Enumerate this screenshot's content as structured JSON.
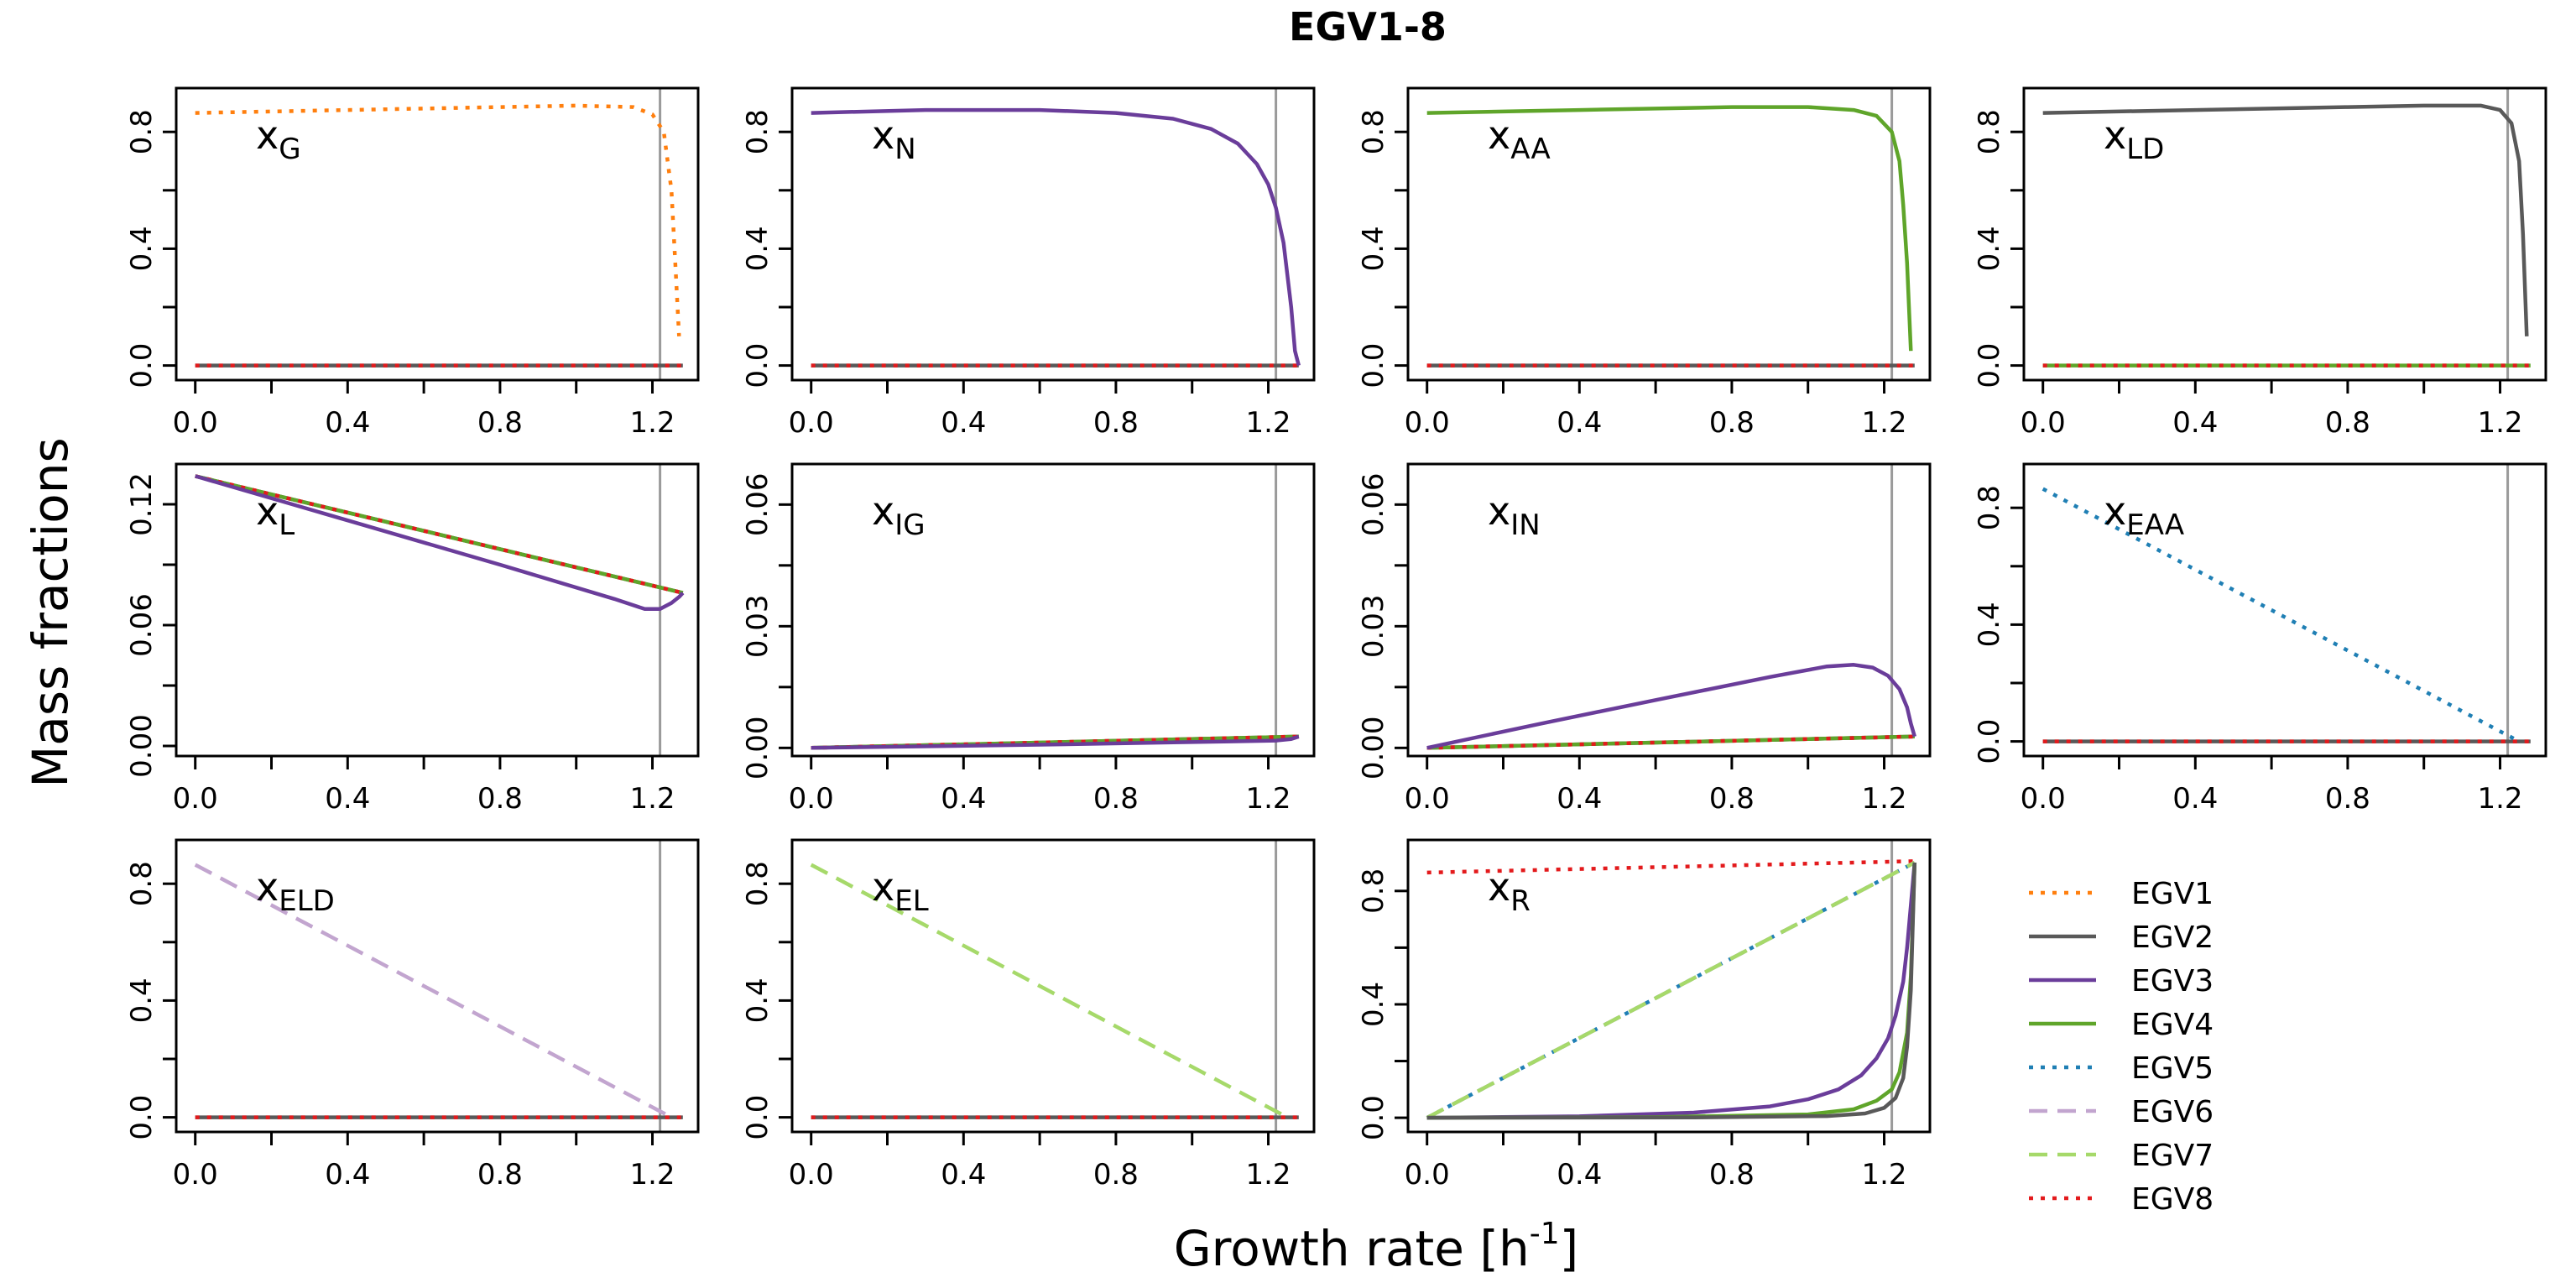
{
  "figure": {
    "title": "EGV1-8",
    "xlabel": "Growth rate [h",
    "xlabel_sup": "-1",
    "xlabel_end": "]",
    "ylabel": "Mass fractions"
  },
  "colors": {
    "EGV1": "#ff7f0e",
    "EGV2": "#595959",
    "EGV3": "#6a3d9a",
    "EGV4": "#5fa52a",
    "EGV5": "#1f7fb4",
    "EGV6": "#c2a5cf",
    "EGV7": "#a6d96a",
    "EGV8": "#e31a1c"
  },
  "legend": [
    {
      "name": "EGV1",
      "style": "dotted"
    },
    {
      "name": "EGV2",
      "style": "solid"
    },
    {
      "name": "EGV3",
      "style": "solid"
    },
    {
      "name": "EGV4",
      "style": "solid"
    },
    {
      "name": "EGV5",
      "style": "dotted"
    },
    {
      "name": "EGV6",
      "style": "dashed"
    },
    {
      "name": "EGV7",
      "style": "dashed"
    },
    {
      "name": "EGV8",
      "style": "dotted"
    }
  ],
  "chart_data": [
    {
      "type": "line",
      "panel_label": "x",
      "panel_label_sub": "G",
      "xlim": [
        -0.05,
        1.32
      ],
      "ylim": [
        -0.05,
        0.95
      ],
      "xticks": [
        0,
        0.2,
        0.4,
        0.6,
        0.8,
        1.0,
        1.2
      ],
      "xticklabels": [
        "0.0",
        "",
        "0.4",
        "",
        "0.8",
        "",
        "1.2"
      ],
      "yticks": [
        0,
        0.2,
        0.4,
        0.6,
        0.8
      ],
      "yticklabels": [
        "0.0",
        "",
        "0.4",
        "",
        "0.8"
      ],
      "vline": 1.22,
      "series": [
        {
          "name": "EGV2",
          "x": [
            0,
            1.28
          ],
          "y": [
            0,
            0
          ]
        },
        {
          "name": "EGV8",
          "x": [
            0,
            1.28
          ],
          "y": [
            0,
            0
          ]
        },
        {
          "name": "EGV1",
          "x": [
            0,
            0.4,
            0.8,
            1.0,
            1.15,
            1.2,
            1.23,
            1.25,
            1.26,
            1.27
          ],
          "y": [
            0.865,
            0.875,
            0.885,
            0.89,
            0.885,
            0.86,
            0.8,
            0.6,
            0.35,
            0.1
          ]
        }
      ]
    },
    {
      "type": "line",
      "panel_label": "x",
      "panel_label_sub": "N",
      "xlim": [
        -0.05,
        1.32
      ],
      "ylim": [
        -0.05,
        0.95
      ],
      "xticks": [
        0,
        0.2,
        0.4,
        0.6,
        0.8,
        1.0,
        1.2
      ],
      "xticklabels": [
        "0.0",
        "",
        "0.4",
        "",
        "0.8",
        "",
        "1.2"
      ],
      "yticks": [
        0,
        0.2,
        0.4,
        0.6,
        0.8
      ],
      "yticklabels": [
        "0.0",
        "",
        "0.4",
        "",
        "0.8"
      ],
      "vline": 1.22,
      "series": [
        {
          "name": "EGV2",
          "x": [
            0,
            1.28
          ],
          "y": [
            0,
            0
          ]
        },
        {
          "name": "EGV8",
          "x": [
            0,
            1.28
          ],
          "y": [
            0,
            0
          ]
        },
        {
          "name": "EGV3",
          "x": [
            0,
            0.3,
            0.6,
            0.8,
            0.95,
            1.05,
            1.12,
            1.17,
            1.2,
            1.22,
            1.24,
            1.26,
            1.27,
            1.28
          ],
          "y": [
            0.865,
            0.875,
            0.875,
            0.865,
            0.845,
            0.81,
            0.76,
            0.69,
            0.62,
            0.54,
            0.42,
            0.2,
            0.05,
            0.0
          ]
        }
      ]
    },
    {
      "type": "line",
      "panel_label": "x",
      "panel_label_sub": "AA",
      "xlim": [
        -0.05,
        1.32
      ],
      "ylim": [
        -0.05,
        0.95
      ],
      "xticks": [
        0,
        0.2,
        0.4,
        0.6,
        0.8,
        1.0,
        1.2
      ],
      "xticklabels": [
        "0.0",
        "",
        "0.4",
        "",
        "0.8",
        "",
        "1.2"
      ],
      "yticks": [
        0,
        0.2,
        0.4,
        0.6,
        0.8
      ],
      "yticklabels": [
        "0.0",
        "",
        "0.4",
        "",
        "0.8"
      ],
      "vline": 1.22,
      "series": [
        {
          "name": "EGV2",
          "x": [
            0,
            1.28
          ],
          "y": [
            0,
            0
          ]
        },
        {
          "name": "EGV8",
          "x": [
            0,
            1.28
          ],
          "y": [
            0,
            0
          ]
        },
        {
          "name": "EGV4",
          "x": [
            0,
            0.4,
            0.8,
            1.0,
            1.12,
            1.18,
            1.22,
            1.24,
            1.25,
            1.26,
            1.27
          ],
          "y": [
            0.865,
            0.875,
            0.885,
            0.885,
            0.875,
            0.855,
            0.8,
            0.7,
            0.55,
            0.35,
            0.05
          ]
        }
      ]
    },
    {
      "type": "line",
      "panel_label": "x",
      "panel_label_sub": "LD",
      "xlim": [
        -0.05,
        1.32
      ],
      "ylim": [
        -0.05,
        0.95
      ],
      "xticks": [
        0,
        0.2,
        0.4,
        0.6,
        0.8,
        1.0,
        1.2
      ],
      "xticklabels": [
        "0.0",
        "",
        "0.4",
        "",
        "0.8",
        "",
        "1.2"
      ],
      "yticks": [
        0,
        0.2,
        0.4,
        0.6,
        0.8
      ],
      "yticklabels": [
        "0.0",
        "",
        "0.4",
        "",
        "0.8"
      ],
      "vline": 1.22,
      "series": [
        {
          "name": "EGV4",
          "x": [
            0,
            1.28
          ],
          "y": [
            0,
            0
          ]
        },
        {
          "name": "EGV8",
          "x": [
            0,
            1.28
          ],
          "y": [
            0,
            0
          ]
        },
        {
          "name": "EGV2",
          "x": [
            0,
            0.4,
            0.8,
            1.0,
            1.15,
            1.2,
            1.23,
            1.25,
            1.26,
            1.27
          ],
          "y": [
            0.865,
            0.875,
            0.885,
            0.89,
            0.89,
            0.875,
            0.83,
            0.7,
            0.45,
            0.1
          ]
        }
      ]
    },
    {
      "type": "line",
      "panel_label": "x",
      "panel_label_sub": "L",
      "xlim": [
        -0.05,
        1.32
      ],
      "ylim": [
        -0.005,
        0.14
      ],
      "xticks": [
        0,
        0.2,
        0.4,
        0.6,
        0.8,
        1.0,
        1.2
      ],
      "xticklabels": [
        "0.0",
        "",
        "0.4",
        "",
        "0.8",
        "",
        "1.2"
      ],
      "yticks": [
        0,
        0.03,
        0.06,
        0.09,
        0.12
      ],
      "yticklabels": [
        "0.00",
        "",
        "0.06",
        "",
        "0.12"
      ],
      "vline": 1.22,
      "series": [
        {
          "name": "EGV2",
          "x": [
            0,
            1.28
          ],
          "y": [
            0.134,
            0.076
          ]
        },
        {
          "name": "EGV4",
          "x": [
            0,
            1.28
          ],
          "y": [
            0.134,
            0.076
          ]
        },
        {
          "name": "EGV8",
          "x": [
            0,
            1.28
          ],
          "y": [
            0.134,
            0.076
          ]
        },
        {
          "name": "EGV3",
          "x": [
            0,
            0.4,
            0.8,
            1.1,
            1.18,
            1.22,
            1.25,
            1.27,
            1.28
          ],
          "y": [
            0.134,
            0.112,
            0.09,
            0.073,
            0.068,
            0.068,
            0.071,
            0.074,
            0.076
          ]
        }
      ]
    },
    {
      "type": "line",
      "panel_label": "x",
      "panel_label_sub": "IG",
      "xlim": [
        -0.05,
        1.32
      ],
      "ylim": [
        -0.002,
        0.07
      ],
      "xticks": [
        0,
        0.2,
        0.4,
        0.6,
        0.8,
        1.0,
        1.2
      ],
      "xticklabels": [
        "0.0",
        "",
        "0.4",
        "",
        "0.8",
        "",
        "1.2"
      ],
      "yticks": [
        0,
        0.015,
        0.03,
        0.045,
        0.06
      ],
      "yticklabels": [
        "0.00",
        "",
        "0.03",
        "",
        "0.06"
      ],
      "vline": 1.22,
      "series": [
        {
          "name": "EGV2",
          "x": [
            0,
            1.28
          ],
          "y": [
            0,
            0.0028
          ]
        },
        {
          "name": "EGV4",
          "x": [
            0,
            1.28
          ],
          "y": [
            0,
            0.0028
          ]
        },
        {
          "name": "EGV8",
          "x": [
            0,
            1.28
          ],
          "y": [
            0,
            0.0028
          ]
        },
        {
          "name": "EGV3",
          "x": [
            0,
            0.6,
            1.1,
            1.22,
            1.26,
            1.28
          ],
          "y": [
            0,
            0.0008,
            0.0016,
            0.0018,
            0.0022,
            0.0028
          ]
        }
      ]
    },
    {
      "type": "line",
      "panel_label": "x",
      "panel_label_sub": "IN",
      "xlim": [
        -0.05,
        1.32
      ],
      "ylim": [
        -0.002,
        0.07
      ],
      "xticks": [
        0,
        0.2,
        0.4,
        0.6,
        0.8,
        1.0,
        1.2
      ],
      "xticklabels": [
        "0.0",
        "",
        "0.4",
        "",
        "0.8",
        "",
        "1.2"
      ],
      "yticks": [
        0,
        0.015,
        0.03,
        0.045,
        0.06
      ],
      "yticklabels": [
        "0.00",
        "",
        "0.03",
        "",
        "0.06"
      ],
      "vline": 1.22,
      "series": [
        {
          "name": "EGV2",
          "x": [
            0,
            1.28
          ],
          "y": [
            0,
            0.0028
          ]
        },
        {
          "name": "EGV4",
          "x": [
            0,
            1.28
          ],
          "y": [
            0,
            0.0028
          ]
        },
        {
          "name": "EGV8",
          "x": [
            0,
            1.28
          ],
          "y": [
            0,
            0.0028
          ]
        },
        {
          "name": "EGV3",
          "x": [
            0,
            0.3,
            0.6,
            0.9,
            1.05,
            1.12,
            1.17,
            1.21,
            1.24,
            1.26,
            1.27,
            1.28
          ],
          "y": [
            0,
            0.006,
            0.0118,
            0.0175,
            0.0201,
            0.0205,
            0.0198,
            0.0178,
            0.0145,
            0.01,
            0.006,
            0.0028
          ]
        }
      ]
    },
    {
      "type": "line",
      "panel_label": "x",
      "panel_label_sub": "EAA",
      "xlim": [
        -0.05,
        1.32
      ],
      "ylim": [
        -0.05,
        0.95
      ],
      "xticks": [
        0,
        0.2,
        0.4,
        0.6,
        0.8,
        1.0,
        1.2
      ],
      "xticklabels": [
        "0.0",
        "",
        "0.4",
        "",
        "0.8",
        "",
        "1.2"
      ],
      "yticks": [
        0,
        0.2,
        0.4,
        0.6,
        0.8
      ],
      "yticklabels": [
        "0.0",
        "",
        "0.4",
        "",
        "0.8"
      ],
      "vline": 1.22,
      "series": [
        {
          "name": "EGV2",
          "x": [
            0,
            1.28
          ],
          "y": [
            0,
            0
          ]
        },
        {
          "name": "EGV8",
          "x": [
            0,
            1.28
          ],
          "y": [
            0,
            0
          ]
        },
        {
          "name": "EGV5",
          "x": [
            0,
            1.25
          ],
          "y": [
            0.865,
            0.0
          ]
        }
      ]
    },
    {
      "type": "line",
      "panel_label": "x",
      "panel_label_sub": "ELD",
      "xlim": [
        -0.05,
        1.32
      ],
      "ylim": [
        -0.05,
        0.95
      ],
      "xticks": [
        0,
        0.2,
        0.4,
        0.6,
        0.8,
        1.0,
        1.2
      ],
      "xticklabels": [
        "0.0",
        "",
        "0.4",
        "",
        "0.8",
        "",
        "1.2"
      ],
      "yticks": [
        0,
        0.2,
        0.4,
        0.6,
        0.8
      ],
      "yticklabels": [
        "0.0",
        "",
        "0.4",
        "",
        "0.8"
      ],
      "vline": 1.22,
      "series": [
        {
          "name": "EGV6",
          "x": [
            0,
            1.25
          ],
          "y": [
            0.865,
            0.0
          ]
        },
        {
          "name": "EGV2",
          "x": [
            0,
            1.28
          ],
          "y": [
            0,
            0
          ]
        },
        {
          "name": "EGV8",
          "x": [
            0,
            1.28
          ],
          "y": [
            0,
            0
          ]
        }
      ]
    },
    {
      "type": "line",
      "panel_label": "x",
      "panel_label_sub": "EL",
      "xlim": [
        -0.05,
        1.32
      ],
      "ylim": [
        -0.05,
        0.95
      ],
      "xticks": [
        0,
        0.2,
        0.4,
        0.6,
        0.8,
        1.0,
        1.2
      ],
      "xticklabels": [
        "0.0",
        "",
        "0.4",
        "",
        "0.8",
        "",
        "1.2"
      ],
      "yticks": [
        0,
        0.2,
        0.4,
        0.6,
        0.8
      ],
      "yticklabels": [
        "0.0",
        "",
        "0.4",
        "",
        "0.8"
      ],
      "vline": 1.22,
      "series": [
        {
          "name": "EGV7",
          "x": [
            0,
            1.25
          ],
          "y": [
            0.865,
            0.0
          ]
        },
        {
          "name": "EGV2",
          "x": [
            0,
            1.28
          ],
          "y": [
            0,
            0
          ]
        },
        {
          "name": "EGV8",
          "x": [
            0,
            1.28
          ],
          "y": [
            0,
            0
          ]
        }
      ]
    },
    {
      "type": "line",
      "panel_label": "x",
      "panel_label_sub": "R",
      "xlim": [
        -0.05,
        1.32
      ],
      "ylim": [
        -0.05,
        0.98
      ],
      "xticks": [
        0,
        0.2,
        0.4,
        0.6,
        0.8,
        1.0,
        1.2
      ],
      "xticklabels": [
        "0.0",
        "",
        "0.4",
        "",
        "0.8",
        "",
        "1.2"
      ],
      "yticks": [
        0,
        0.2,
        0.4,
        0.6,
        0.8
      ],
      "yticklabels": [
        "0.0",
        "",
        "0.4",
        "",
        "0.8"
      ],
      "vline": 1.22,
      "series": [
        {
          "name": "EGV8",
          "x": [
            0,
            1.28
          ],
          "y": [
            0.865,
            0.905
          ]
        },
        {
          "name": "EGV5",
          "x": [
            0,
            1.28
          ],
          "y": [
            0,
            0.9
          ]
        },
        {
          "name": "EGV6",
          "x": [
            0,
            1.28
          ],
          "y": [
            0,
            0.9
          ]
        },
        {
          "name": "EGV7",
          "x": [
            0,
            1.28
          ],
          "y": [
            0,
            0.9
          ]
        },
        {
          "name": "EGV3",
          "x": [
            0,
            0.4,
            0.7,
            0.9,
            1.0,
            1.08,
            1.14,
            1.18,
            1.21,
            1.23,
            1.25,
            1.26,
            1.27,
            1.28
          ],
          "y": [
            0,
            0.005,
            0.018,
            0.04,
            0.065,
            0.1,
            0.15,
            0.21,
            0.28,
            0.36,
            0.48,
            0.6,
            0.75,
            0.9
          ]
        },
        {
          "name": "EGV4",
          "x": [
            0,
            0.6,
            1.0,
            1.12,
            1.18,
            1.22,
            1.24,
            1.26,
            1.27,
            1.28
          ],
          "y": [
            0,
            0.002,
            0.012,
            0.03,
            0.06,
            0.1,
            0.16,
            0.3,
            0.5,
            0.9
          ]
        },
        {
          "name": "EGV2",
          "x": [
            0,
            0.7,
            1.05,
            1.15,
            1.2,
            1.23,
            1.25,
            1.26,
            1.27,
            1.28
          ],
          "y": [
            0,
            0.001,
            0.006,
            0.015,
            0.035,
            0.07,
            0.14,
            0.25,
            0.45,
            0.9
          ]
        }
      ]
    }
  ]
}
